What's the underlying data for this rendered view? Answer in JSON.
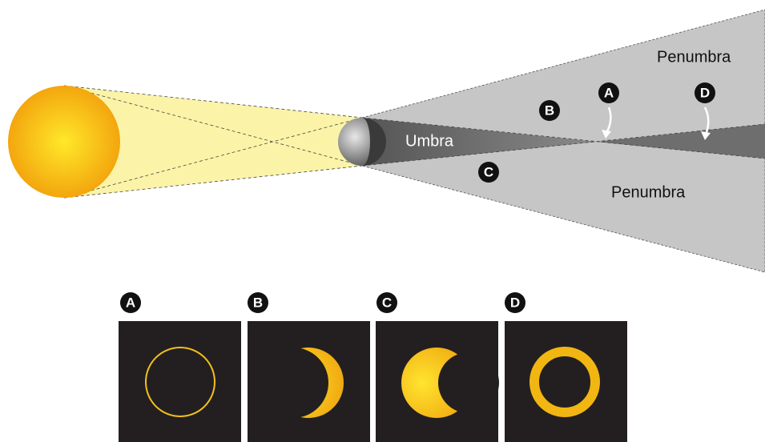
{
  "shadow_labels": [
    "Penumbra",
    "Penumbra",
    "Umbra"
  ],
  "markers": [
    "A",
    "B",
    "C",
    "D"
  ],
  "panels": [
    {
      "label": "A"
    },
    {
      "label": "B"
    },
    {
      "label": "C"
    },
    {
      "label": "D"
    }
  ]
}
